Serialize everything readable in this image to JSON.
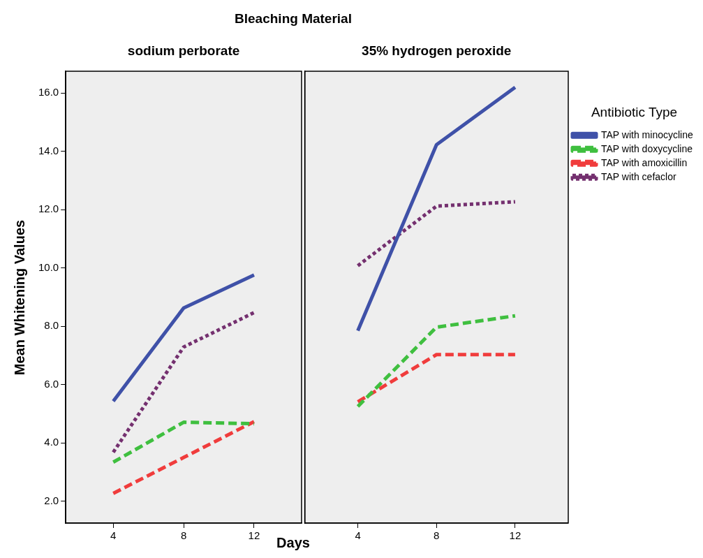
{
  "chart_data": [
    {
      "type": "line",
      "title": "Bleaching Material",
      "subtitle": "sodium perborate",
      "xlabel": "Days",
      "ylabel": "Mean Whitening Values",
      "x": [
        4,
        8,
        12
      ],
      "xlim": [
        1.3,
        14.7
      ],
      "xticks": [
        4,
        8,
        12
      ],
      "ylim": [
        1.25,
        16.75
      ],
      "yticks": [
        {
          "value": 2,
          "label": "2.0"
        },
        {
          "value": 4,
          "label": "4.0"
        },
        {
          "value": 6,
          "label": "6.0"
        },
        {
          "value": 8,
          "label": "8.0"
        },
        {
          "value": 10,
          "label": "10.0"
        },
        {
          "value": 12,
          "label": "12.0"
        },
        {
          "value": 14,
          "label": "14.0"
        },
        {
          "value": 16,
          "label": "16.0"
        }
      ],
      "grid": false,
      "legend": false,
      "marker": "none",
      "series": [
        {
          "color": "#3f51a8",
          "line_style": "solid",
          "values": [
            5.43,
            8.63,
            9.76
          ]
        },
        {
          "color": "#3fbf3f",
          "line_style": "dashed",
          "values": [
            3.34,
            4.71,
            4.66
          ]
        },
        {
          "color": "#f03c3c",
          "line_style": "dashed",
          "values": [
            2.27,
            3.5,
            4.73
          ]
        },
        {
          "color": "#74306f",
          "line_style": "dotted",
          "values": [
            3.68,
            7.29,
            8.47
          ]
        }
      ]
    },
    {
      "type": "line",
      "subtitle": "35% hydrogen peroxide",
      "legend_title": "Antibiotic Type",
      "x": [
        4,
        8,
        12
      ],
      "xlim": [
        1.3,
        14.7
      ],
      "xticks": [
        4,
        8,
        12
      ],
      "ylim": [
        1.25,
        16.75
      ],
      "tick_labels": "x",
      "grid": false,
      "legend": "right",
      "marker": "none",
      "series": [
        {
          "name": "TAP with minocycline",
          "color": "#3f51a8",
          "line_style": "solid",
          "values": [
            7.85,
            14.23,
            16.2
          ]
        },
        {
          "name": "TAP with doxycycline",
          "color": "#3fbf3f",
          "line_style": "dashed",
          "values": [
            5.25,
            7.97,
            8.36
          ]
        },
        {
          "name": "TAP with amoxicillin",
          "color": "#f03c3c",
          "line_style": "dashed",
          "values": [
            5.41,
            7.03,
            7.03
          ]
        },
        {
          "name": "TAP with cefaclor",
          "color": "#74306f",
          "line_style": "dotted",
          "values": [
            10.08,
            12.12,
            12.27
          ]
        }
      ]
    }
  ]
}
